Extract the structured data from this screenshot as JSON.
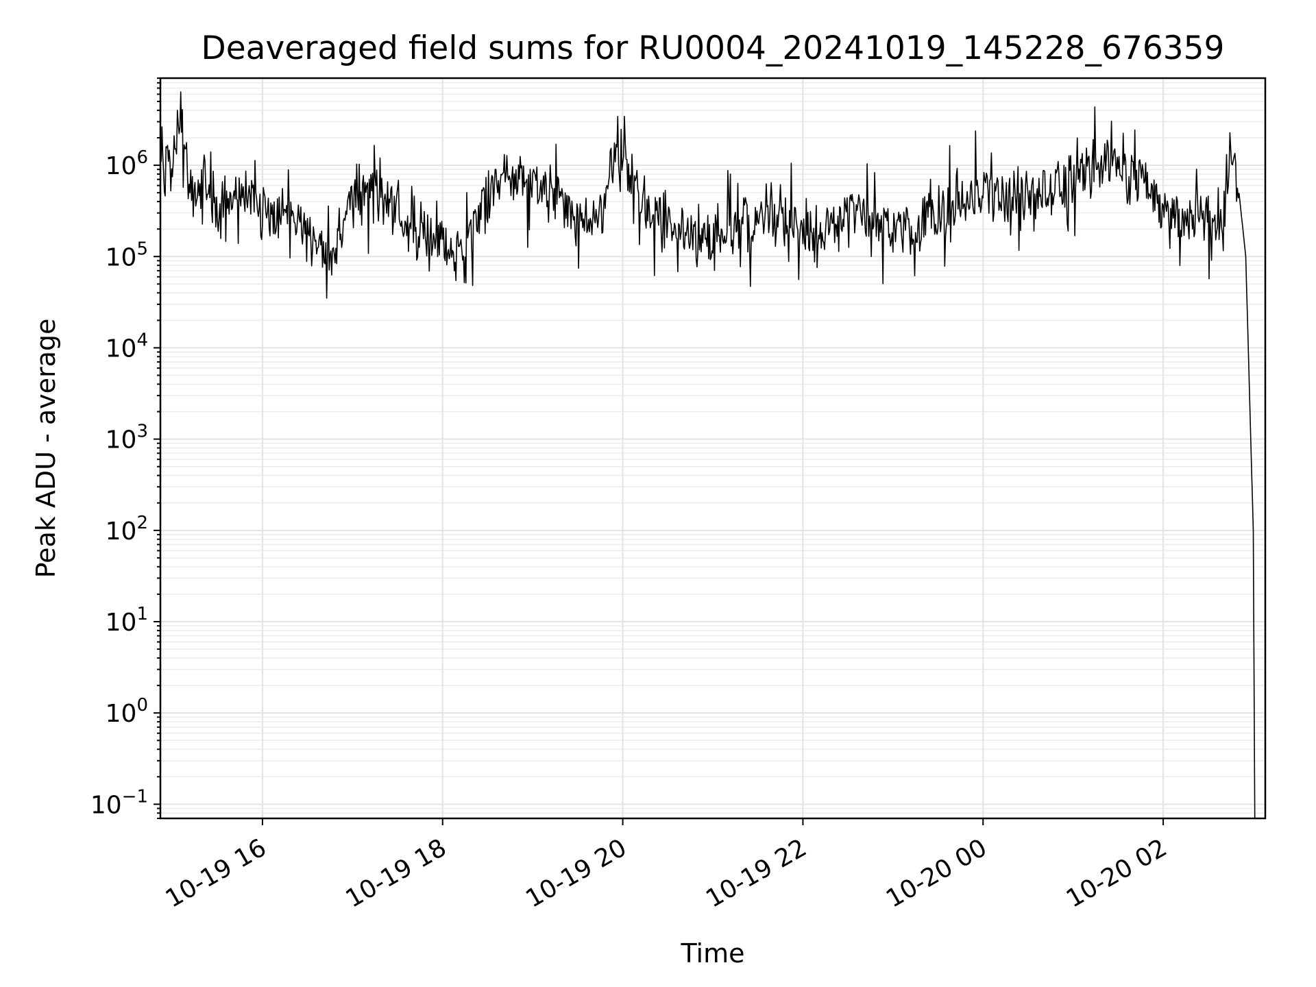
{
  "chart_data": {
    "type": "line",
    "title": "Deaveraged field sums for RU0004_20241019_145228_676359",
    "xlabel": "Time",
    "ylabel": "Peak ADU - average",
    "yscale": "log",
    "ylim": [
      0.07,
      9000000
    ],
    "xlim": [
      "2024-10-19 14:52",
      "2024-10-20 03:08"
    ],
    "grid": true,
    "x_ticks": [
      {
        "value": "2024-10-19 16:00",
        "label": "10-19 16"
      },
      {
        "value": "2024-10-19 18:00",
        "label": "10-19 18"
      },
      {
        "value": "2024-10-19 20:00",
        "label": "10-19 20"
      },
      {
        "value": "2024-10-19 22:00",
        "label": "10-19 22"
      },
      {
        "value": "2024-10-20 00:00",
        "label": "10-20 00"
      },
      {
        "value": "2024-10-20 02:00",
        "label": "10-20 02"
      }
    ],
    "y_ticks": [
      {
        "value": 0.1,
        "base": "10",
        "exp": "−1"
      },
      {
        "value": 1,
        "base": "10",
        "exp": "0"
      },
      {
        "value": 10,
        "base": "10",
        "exp": "1"
      },
      {
        "value": 100,
        "base": "10",
        "exp": "2"
      },
      {
        "value": 1000,
        "base": "10",
        "exp": "3"
      },
      {
        "value": 10000,
        "base": "10",
        "exp": "4"
      },
      {
        "value": 100000,
        "base": "10",
        "exp": "5"
      },
      {
        "value": 1000000,
        "base": "10",
        "exp": "6"
      }
    ],
    "series": [
      {
        "color": "#000000",
        "x": [
          "2024-10-19 14:52",
          "2024-10-19 15:00",
          "2024-10-19 15:05",
          "2024-10-19 15:10",
          "2024-10-19 15:15",
          "2024-10-19 15:20",
          "2024-10-19 15:30",
          "2024-10-19 15:45",
          "2024-10-19 16:00",
          "2024-10-19 16:15",
          "2024-10-19 16:30",
          "2024-10-19 16:45",
          "2024-10-19 17:00",
          "2024-10-19 17:15",
          "2024-10-19 17:30",
          "2024-10-19 17:45",
          "2024-10-19 18:00",
          "2024-10-19 18:15",
          "2024-10-19 18:30",
          "2024-10-19 18:45",
          "2024-10-19 19:00",
          "2024-10-19 19:15",
          "2024-10-19 19:30",
          "2024-10-19 19:45",
          "2024-10-19 19:55",
          "2024-10-19 20:05",
          "2024-10-19 20:15",
          "2024-10-19 20:30",
          "2024-10-19 20:45",
          "2024-10-19 21:00",
          "2024-10-19 21:15",
          "2024-10-19 21:30",
          "2024-10-19 21:45",
          "2024-10-19 22:00",
          "2024-10-19 22:15",
          "2024-10-19 22:30",
          "2024-10-19 22:45",
          "2024-10-19 23:00",
          "2024-10-19 23:15",
          "2024-10-19 23:30",
          "2024-10-19 23:45",
          "2024-10-20 00:00",
          "2024-10-20 00:15",
          "2024-10-20 00:30",
          "2024-10-20 00:45",
          "2024-10-20 01:00",
          "2024-10-20 01:15",
          "2024-10-20 01:30",
          "2024-10-20 01:45",
          "2024-10-20 02:00",
          "2024-10-20 02:15",
          "2024-10-20 02:30",
          "2024-10-20 02:40",
          "2024-10-20 02:45",
          "2024-10-20 02:50",
          "2024-10-20 02:55",
          "2024-10-20 03:00",
          "2024-10-20 03:01"
        ],
        "y": [
          1100000,
          1200000,
          3500000,
          700000,
          400000,
          900000,
          250000,
          600000,
          300000,
          250000,
          200000,
          90000,
          400000,
          600000,
          300000,
          200000,
          150000,
          120000,
          500000,
          700000,
          600000,
          400000,
          250000,
          300000,
          1500000,
          700000,
          300000,
          250000,
          200000,
          150000,
          200000,
          250000,
          300000,
          200000,
          180000,
          300000,
          250000,
          200000,
          150000,
          300000,
          400000,
          500000,
          450000,
          400000,
          600000,
          800000,
          900000,
          1000000,
          700000,
          300000,
          250000,
          300000,
          200000,
          2000000,
          600000,
          100000,
          100,
          0.07
        ]
      }
    ]
  }
}
